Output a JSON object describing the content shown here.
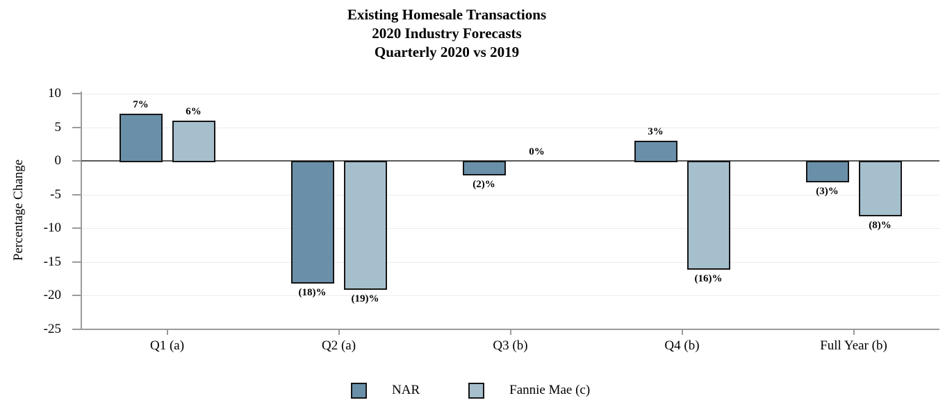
{
  "chart_data": {
    "type": "bar",
    "title_lines": [
      "Existing Homesale Transactions",
      "2020 Industry Forecasts",
      "Quarterly 2020 vs 2019"
    ],
    "ylabel": "Percentage Change",
    "categories": [
      "Q1 (a)",
      "Q2 (a)",
      "Q3 (b)",
      "Q4 (b)",
      "Full Year (b)"
    ],
    "series": [
      {
        "name": "NAR",
        "color": "#6a90a9",
        "values": [
          7,
          -18,
          -2,
          3,
          -3
        ],
        "labels": [
          "7%",
          "(18)%",
          "(2)%",
          "3%",
          "(3)%"
        ]
      },
      {
        "name": "Fannie Mae (c)",
        "color": "#a6bfcd",
        "values": [
          6,
          -19,
          0,
          -16,
          -8
        ],
        "labels": [
          "6%",
          "(19)%",
          "0%",
          "(16)%",
          "(8)%"
        ]
      }
    ],
    "yticks": [
      10,
      5,
      0,
      -5,
      -10,
      -15,
      -20,
      -25
    ],
    "ylim": [
      -25,
      10
    ],
    "grid": true,
    "legend_position": "bottom",
    "colors": {
      "grid_color": "#ececec",
      "zero_line_color": "#595959",
      "axis_color": "#9a9a9a",
      "text_color": "#000000"
    }
  }
}
